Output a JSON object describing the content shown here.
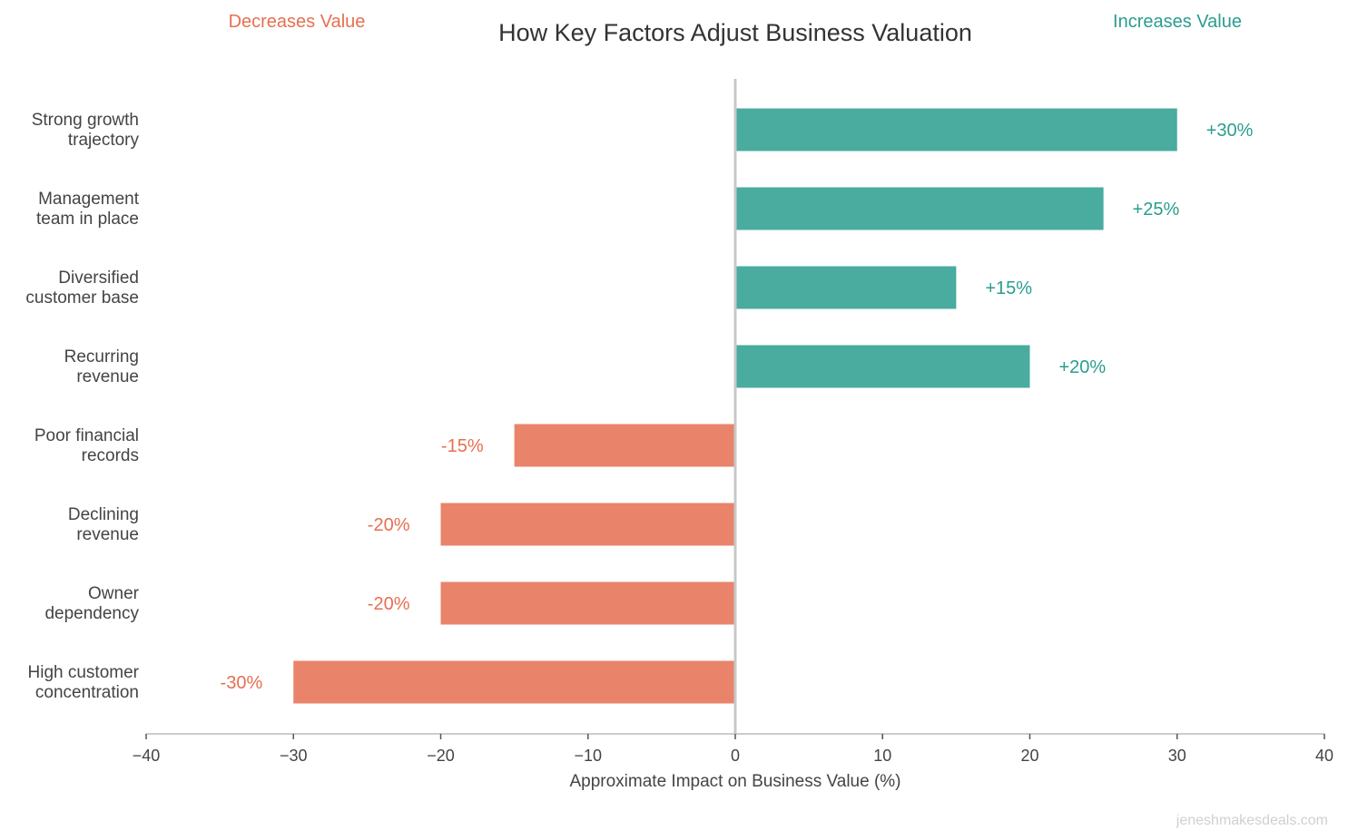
{
  "chart_data": {
    "type": "bar",
    "orientation": "horizontal",
    "title": "How Key Factors Adjust Business Valuation",
    "xlabel": "Approximate Impact on Business Value (%)",
    "xlim": [
      -40,
      40
    ],
    "xticks": [
      -40,
      -30,
      -20,
      -10,
      0,
      10,
      20,
      30,
      40
    ],
    "xtick_labels": [
      "−40",
      "−30",
      "−20",
      "−10",
      "0",
      "10",
      "20",
      "30",
      "40"
    ],
    "grid": false,
    "annotations": {
      "left": "Decreases Value",
      "right": "Increases Value"
    },
    "watermark": "jeneshmakesdeals.com",
    "categories": [
      [
        "Strong growth",
        "trajectory"
      ],
      [
        "Management",
        "team in place"
      ],
      [
        "Diversified",
        "customer base"
      ],
      [
        "Recurring",
        "revenue"
      ],
      [
        "Poor financial",
        "records"
      ],
      [
        "Declining",
        "revenue"
      ],
      [
        "Owner",
        "dependency"
      ],
      [
        "High customer",
        "concentration"
      ]
    ],
    "values": [
      30,
      25,
      15,
      20,
      -15,
      -20,
      -20,
      -30
    ],
    "data_labels": [
      "+30%",
      "+25%",
      "+15%",
      "+20%",
      "-15%",
      "-20%",
      "-20%",
      "-30%"
    ],
    "colors": {
      "positive_bar": "#4aab9f",
      "negative_bar": "#e9846b",
      "positive_text": "#2a9d8f",
      "negative_text": "#e76f51",
      "zero_line": "#c8c8c8",
      "axis": "#cccccc",
      "text": "#444444"
    }
  }
}
